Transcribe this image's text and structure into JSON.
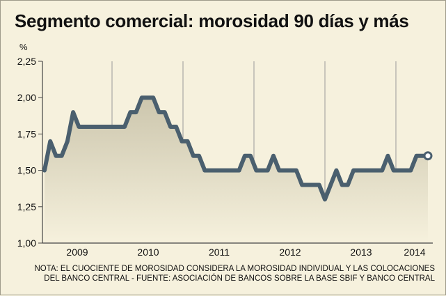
{
  "chart_data": {
    "type": "line",
    "title": "Segmento comercial: morosidad 90 días y más",
    "ylabel": "%",
    "ylim": [
      1.0,
      2.25
    ],
    "yticks": [
      "1,00",
      "1,25",
      "1,50",
      "1,75",
      "2,00",
      "2,25"
    ],
    "year_labels": [
      "2009",
      "2010",
      "2011",
      "2012",
      "2013",
      "2014"
    ],
    "grid": "vertical year separators",
    "series": [
      {
        "values": [
          1.5,
          1.7,
          1.6,
          1.6,
          1.7,
          1.9,
          1.8,
          1.8,
          1.8,
          1.8,
          1.8,
          1.8,
          1.8,
          1.8,
          1.8,
          1.9,
          1.9,
          2.0,
          2.0,
          2.0,
          1.9,
          1.9,
          1.8,
          1.8,
          1.7,
          1.7,
          1.6,
          1.6,
          1.5,
          1.5,
          1.5,
          1.5,
          1.5,
          1.5,
          1.5,
          1.6,
          1.6,
          1.5,
          1.5,
          1.5,
          1.6,
          1.5,
          1.5,
          1.5,
          1.5,
          1.4,
          1.4,
          1.4,
          1.4,
          1.3,
          1.4,
          1.5,
          1.4,
          1.4,
          1.5,
          1.5,
          1.5,
          1.5,
          1.5,
          1.5,
          1.6,
          1.5,
          1.5,
          1.5,
          1.5,
          1.6,
          1.6,
          1.6
        ]
      }
    ]
  },
  "colors": {
    "line": "#4a5f6e",
    "fill_top": "#ccc6ad",
    "fill_bottom": "#f6f1dd",
    "background": "#f6f1dd",
    "axis": "#444444",
    "grid": "#999999"
  },
  "note": {
    "line1": "NOTA: EL CUOCIENTE DE MOROSIDAD CONSIDERA LA MOROSIDAD INDIVIDUAL Y LAS COLOCACIONES",
    "line2": "DEL BANCO CENTRAL - FUENTE: ASOCIACIÓN DE BANCOS SOBRE LA BASE SBIF Y BANCO CENTRAL"
  }
}
